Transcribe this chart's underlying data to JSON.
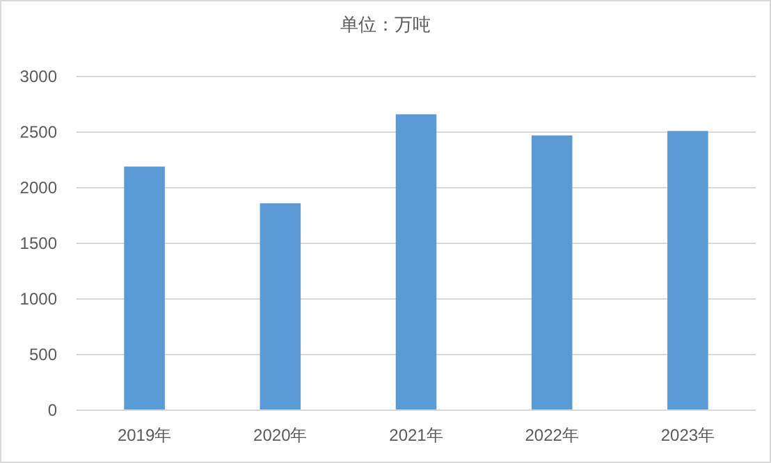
{
  "chart_data": {
    "type": "bar",
    "title": "单位：万吨",
    "categories": [
      "2019年",
      "2020年",
      "2021年",
      "2022年",
      "2023年"
    ],
    "values": [
      2190,
      1860,
      2660,
      2470,
      2510
    ],
    "color": "#5b9bd5",
    "ylim": [
      0,
      3000
    ],
    "yticks": [
      0,
      500,
      1000,
      1500,
      2000,
      2500,
      3000
    ],
    "grid": "y"
  }
}
